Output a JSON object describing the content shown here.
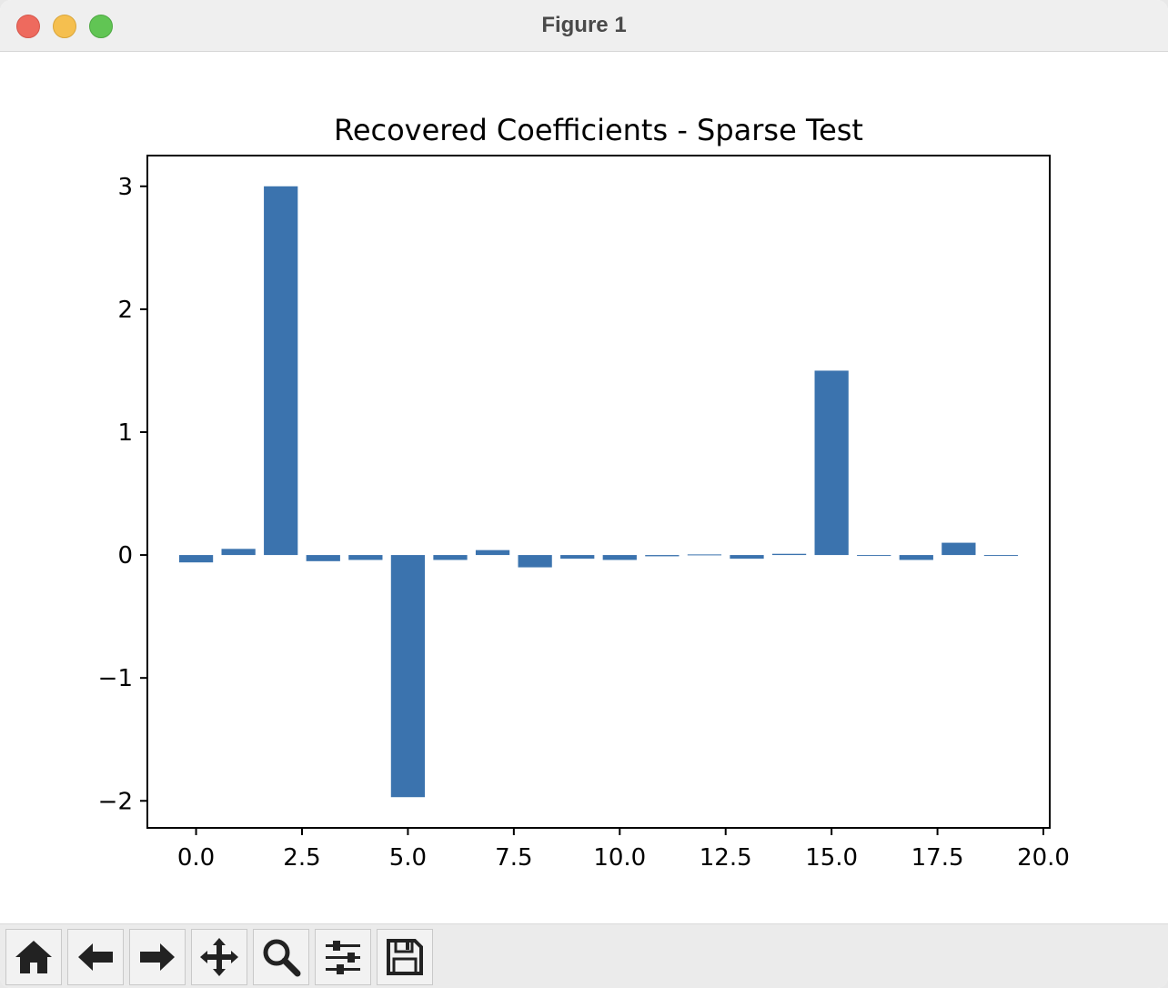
{
  "window": {
    "title": "Figure 1"
  },
  "toolbar": {
    "buttons": [
      {
        "icon": "home-icon",
        "label": "Home"
      },
      {
        "icon": "back-arrow-icon",
        "label": "Back"
      },
      {
        "icon": "forward-arrow-icon",
        "label": "Forward"
      },
      {
        "icon": "pan-move-icon",
        "label": "Pan"
      },
      {
        "icon": "zoom-magnifier-icon",
        "label": "Zoom"
      },
      {
        "icon": "configure-sliders-icon",
        "label": "Configure subplots"
      },
      {
        "icon": "save-floppy-icon",
        "label": "Save"
      }
    ]
  },
  "colors": {
    "bar": "#3b73ae",
    "axis": "#000000"
  },
  "chart_data": {
    "type": "bar",
    "title": "Recovered Coefficients - Sparse Test",
    "xlabel": "",
    "ylabel": "",
    "x": [
      0,
      1,
      2,
      3,
      4,
      5,
      6,
      7,
      8,
      9,
      10,
      11,
      12,
      13,
      14,
      15,
      16,
      17,
      18,
      19
    ],
    "values": [
      -0.06,
      0.05,
      3.0,
      -0.05,
      -0.04,
      -1.97,
      -0.04,
      0.04,
      -0.1,
      -0.03,
      -0.04,
      -0.01,
      0.005,
      -0.03,
      0.01,
      1.5,
      -0.005,
      -0.04,
      0.1,
      -0.005
    ],
    "xlim": [
      -1.15,
      20.15
    ],
    "ylim": [
      -2.22,
      3.25
    ],
    "xticks": [
      0,
      2.5,
      5,
      7.5,
      10,
      12.5,
      15,
      17.5,
      20
    ],
    "xtick_labels": [
      "0.0",
      "2.5",
      "5.0",
      "7.5",
      "10.0",
      "12.5",
      "15.0",
      "17.5",
      "20.0"
    ],
    "yticks": [
      -2,
      -1,
      0,
      1,
      2,
      3
    ],
    "ytick_labels": [
      "−2",
      "−1",
      "0",
      "1",
      "2",
      "3"
    ],
    "grid": false,
    "legend": "none"
  }
}
